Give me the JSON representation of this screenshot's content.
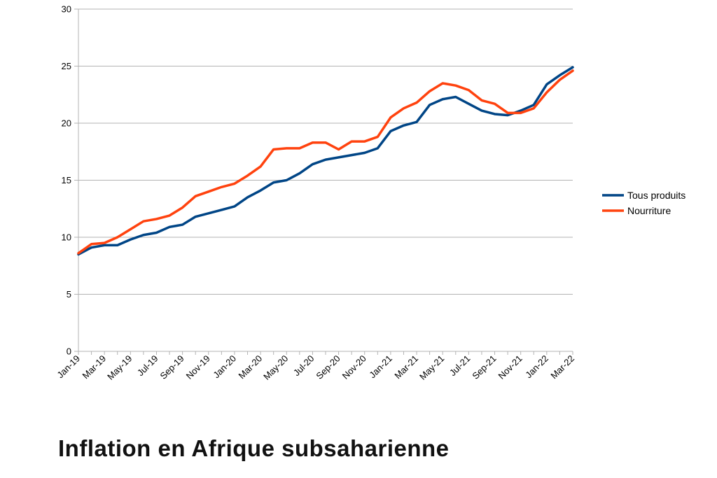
{
  "caption": "Inflation en Afrique subsaharienne",
  "chart_data": {
    "type": "line",
    "x": [
      "Jan-19",
      "Feb-19",
      "Mar-19",
      "Apr-19",
      "May-19",
      "Jun-19",
      "Jul-19",
      "Aug-19",
      "Sep-19",
      "Oct-19",
      "Nov-19",
      "Dec-19",
      "Jan-20",
      "Feb-20",
      "Mar-20",
      "Apr-20",
      "May-20",
      "Jun-20",
      "Jul-20",
      "Aug-20",
      "Sep-20",
      "Oct-20",
      "Nov-20",
      "Dec-20",
      "Jan-21",
      "Feb-21",
      "Mar-21",
      "Apr-21",
      "May-21",
      "Jun-21",
      "Jul-21",
      "Aug-21",
      "Sep-21",
      "Oct-21",
      "Nov-21",
      "Dec-21",
      "Jan-22",
      "Feb-22",
      "Mar-22"
    ],
    "xtick_labels": [
      "Jan-19",
      "Mar-19",
      "May-19",
      "Jul-19",
      "Sep-19",
      "Nov-19",
      "Jan-20",
      "Mar-20",
      "May-20",
      "Jul-20",
      "Sep-20",
      "Nov-20",
      "Jan-21",
      "Mar-21",
      "May-21",
      "Jul-21",
      "Sep-21",
      "Nov-21",
      "Jan-22",
      "Mar-22"
    ],
    "ylim": [
      0,
      30
    ],
    "yticks": [
      0,
      5,
      10,
      15,
      20,
      25,
      30
    ],
    "grid": true,
    "legend_position": "right",
    "series": [
      {
        "name": "Tous produits",
        "color": "#004586",
        "values": [
          8.5,
          9.1,
          9.3,
          9.3,
          9.8,
          10.2,
          10.4,
          10.9,
          11.1,
          11.8,
          12.1,
          12.4,
          12.7,
          13.5,
          14.1,
          14.8,
          15.0,
          15.6,
          16.4,
          16.8,
          17.0,
          17.2,
          17.4,
          17.8,
          19.3,
          19.8,
          20.1,
          21.6,
          22.1,
          22.3,
          21.7,
          21.1,
          20.8,
          20.7,
          21.1,
          21.6,
          23.4,
          24.2,
          24.9
        ]
      },
      {
        "name": "Nourriture",
        "color": "#ff420e",
        "values": [
          8.6,
          9.4,
          9.5,
          10.0,
          10.7,
          11.4,
          11.6,
          11.9,
          12.6,
          13.6,
          14.0,
          14.4,
          14.7,
          15.4,
          16.2,
          17.7,
          17.8,
          17.8,
          18.3,
          18.3,
          17.7,
          18.4,
          18.4,
          18.8,
          20.5,
          21.3,
          21.8,
          22.8,
          23.5,
          23.3,
          22.9,
          22.0,
          21.7,
          20.9,
          20.9,
          21.3,
          22.7,
          23.8,
          24.6
        ]
      }
    ]
  }
}
